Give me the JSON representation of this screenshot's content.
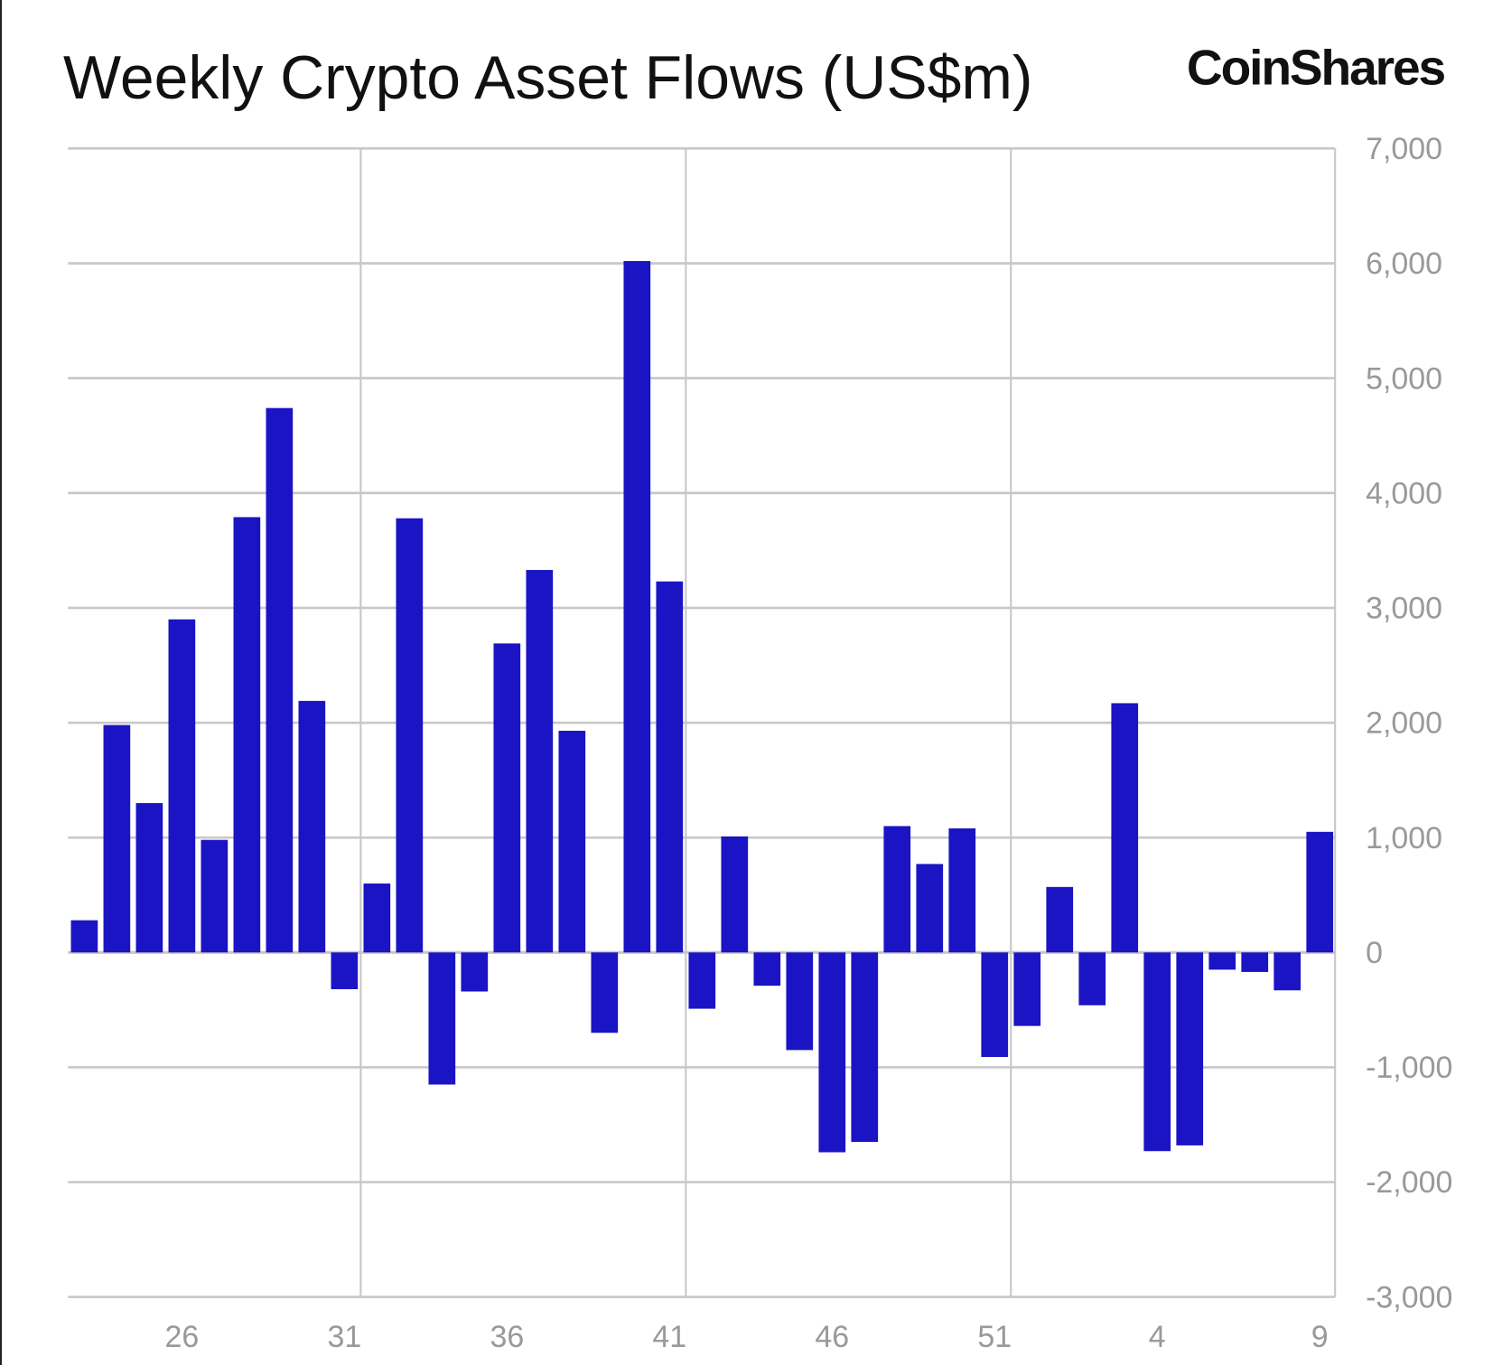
{
  "chart_data": {
    "type": "bar",
    "title": "Weekly Crypto Asset Flows (US$m)",
    "xlabel": "",
    "ylabel": "",
    "ylim": [
      -3000,
      7000
    ],
    "grid": true,
    "y_axis_side": "right",
    "x": [
      23,
      24,
      25,
      26,
      27,
      28,
      29,
      30,
      31,
      32,
      33,
      34,
      35,
      36,
      37,
      38,
      39,
      40,
      41,
      42,
      43,
      44,
      45,
      46,
      47,
      48,
      49,
      50,
      51,
      52,
      1,
      2,
      3,
      4,
      5,
      6,
      7,
      8,
      9
    ],
    "values": [
      280,
      1980,
      1300,
      2900,
      980,
      3790,
      4740,
      2190,
      -320,
      600,
      3780,
      -1150,
      -340,
      2690,
      3330,
      1930,
      -700,
      6020,
      3230,
      -490,
      1010,
      -290,
      -850,
      -1740,
      -1650,
      1100,
      770,
      1080,
      -910,
      -640,
      570,
      -460,
      2170,
      -1730,
      -1680,
      -150,
      -170,
      -330,
      1050
    ],
    "x_tick_labels": [
      "26",
      "31",
      "36",
      "41",
      "46",
      "51",
      "4",
      "9"
    ],
    "y_tick_labels": [
      "7,000",
      "6,000",
      "5,000",
      "4,000",
      "3,000",
      "2,000",
      "1,000",
      "0",
      "-1,000",
      "-2,000",
      "-3,000"
    ],
    "colors": {
      "bar": "#1a14c4",
      "grid": "#c8c8c8",
      "tick": "#999999"
    }
  },
  "brand": {
    "logo_text": "CoinShares"
  }
}
